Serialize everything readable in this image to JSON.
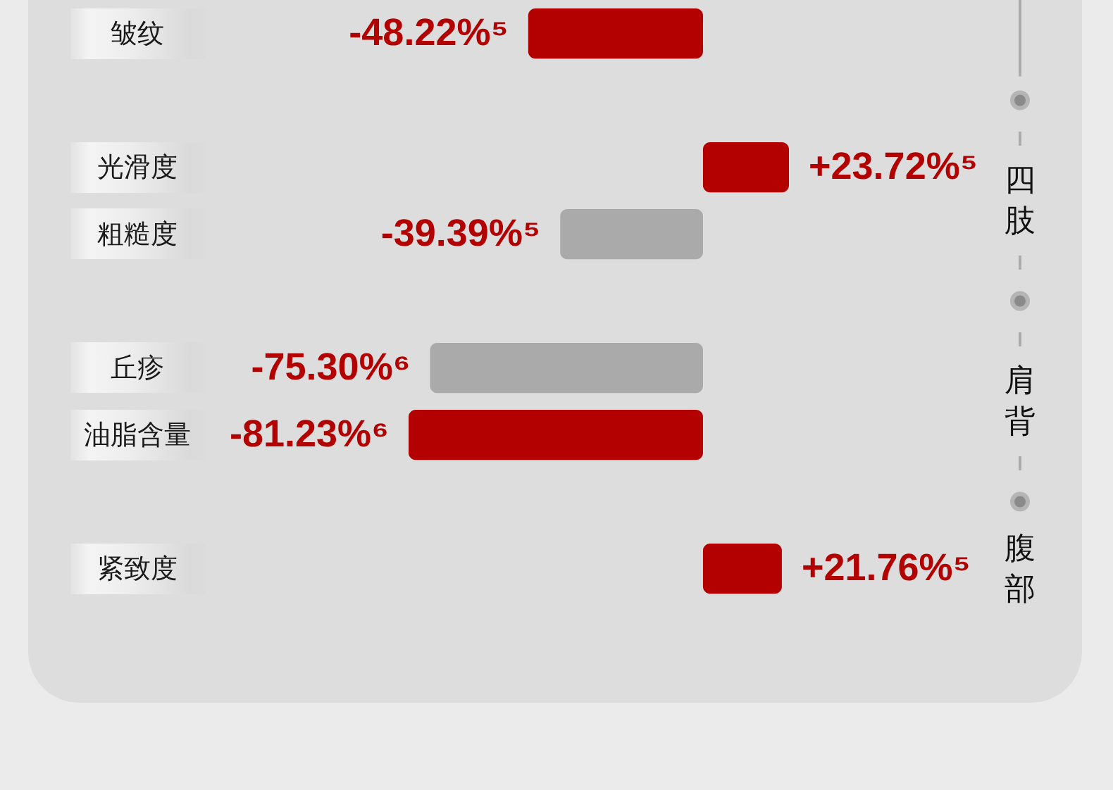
{
  "chart_data": {
    "type": "bar",
    "orientation": "horizontal",
    "categories": [
      "皱纹",
      "光滑度",
      "粗糙度",
      "丘疹",
      "油脂含量",
      "紧致度"
    ],
    "values": [
      -48.22,
      23.72,
      -39.39,
      -75.3,
      -81.23,
      21.76
    ],
    "colors": [
      "#b30000",
      "#b30000",
      "#aaaaaa",
      "#aaaaaa",
      "#b30000",
      "#b30000"
    ],
    "value_labels": [
      "-48.22%⁵",
      "+23.72%⁵",
      "-39.39%⁵",
      "-75.30%⁶",
      "-81.23%⁶",
      "+21.76%⁵"
    ],
    "annotations": [
      "四肢",
      "肩背",
      "腹部"
    ]
  }
}
